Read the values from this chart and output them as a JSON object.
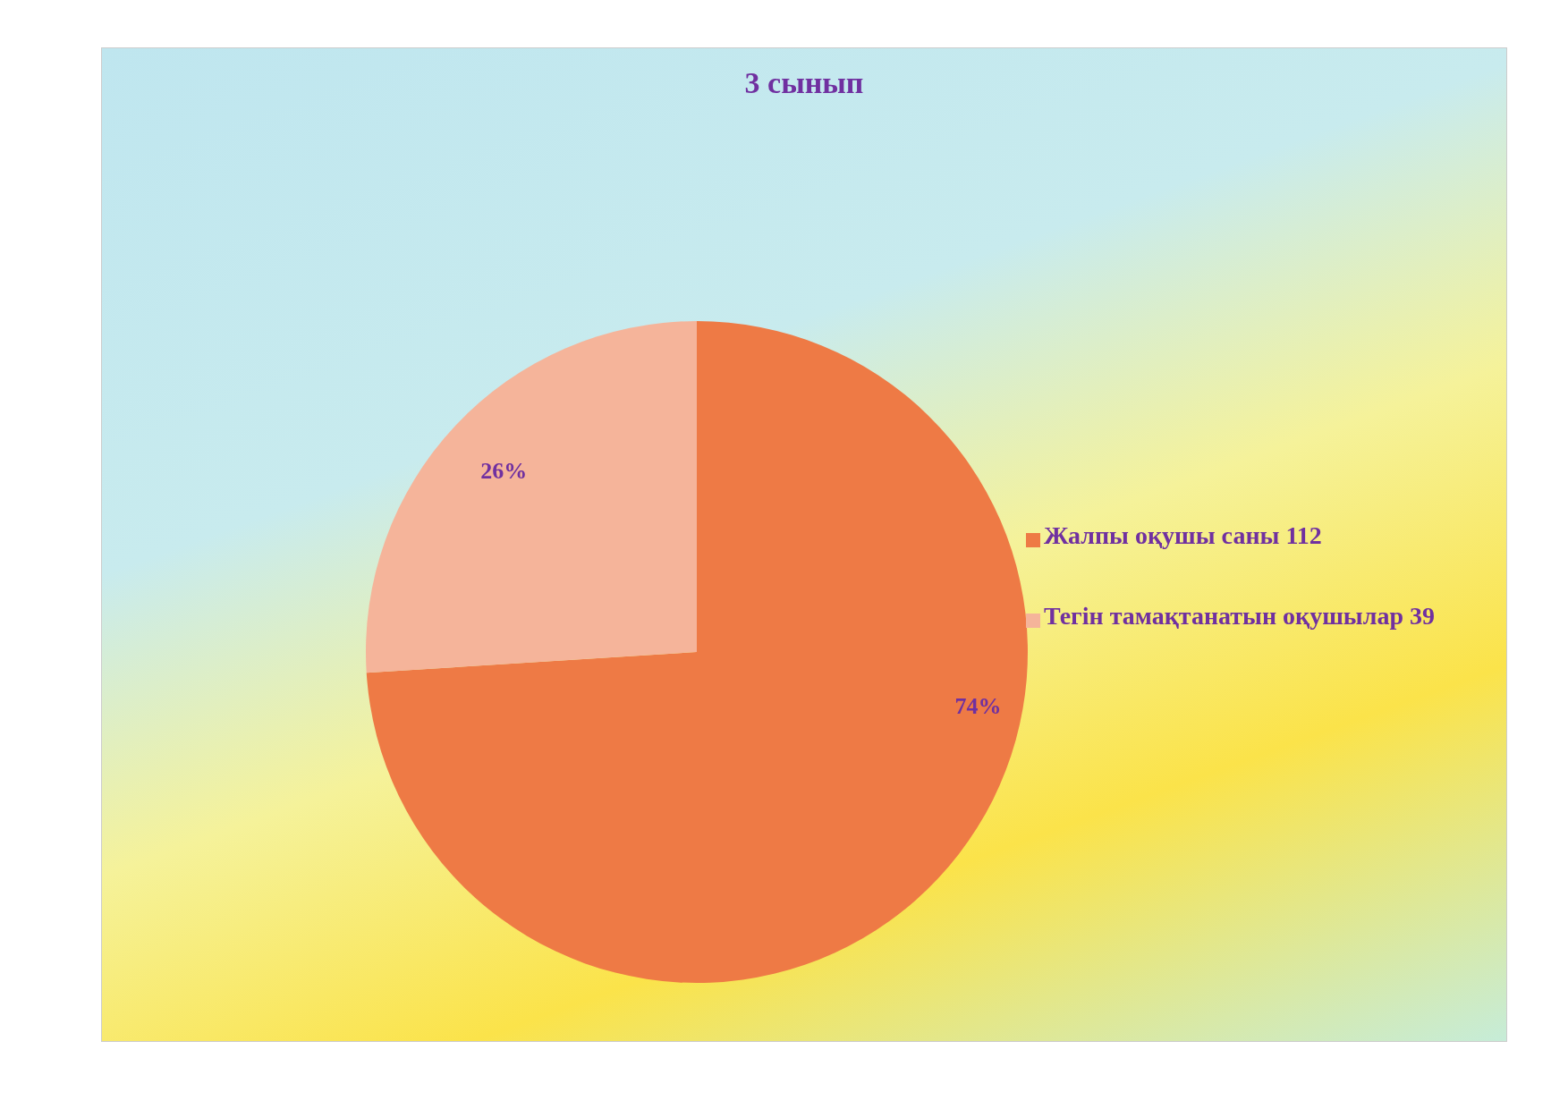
{
  "chart_data": {
    "type": "pie",
    "title": "3 сынып",
    "categories": [
      "Жалпы оқушы саны 112",
      "Тегін тамақтанатын оқушылар 39"
    ],
    "values": [
      74,
      26
    ],
    "colors": [
      "#ee7a45",
      "#f5b49a"
    ],
    "value_labels": [
      "74%",
      "26%"
    ],
    "legend": "right"
  }
}
